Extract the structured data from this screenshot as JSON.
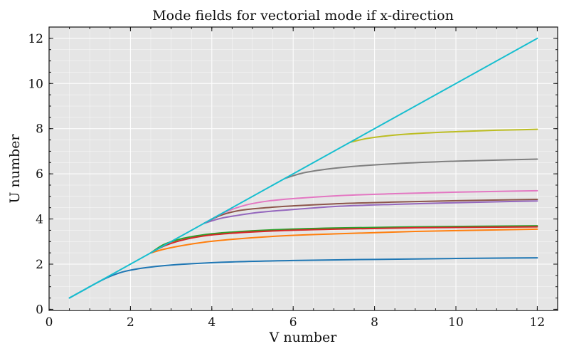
{
  "chart_data": {
    "type": "line",
    "title": "Mode fields for vectorial mode if x-direction",
    "xlabel": "V number",
    "ylabel": "U number",
    "xlim": [
      0,
      12.5
    ],
    "ylim": [
      -0.05,
      12.5
    ],
    "xticks": [
      0,
      2,
      4,
      6,
      8,
      10,
      12
    ],
    "yticks": [
      0,
      2,
      4,
      6,
      8,
      10,
      12
    ],
    "xminor_step": 0.5,
    "yminor_step": 0.5,
    "grid": true,
    "background": "#e5e5e5",
    "series": [
      {
        "color": "#1f77b4",
        "x": [
          0.5,
          0.8,
          1.1,
          1.4,
          1.8,
          2.2,
          2.8,
          3.5,
          4.5,
          6,
          8,
          10,
          12
        ],
        "y": [
          0.5,
          0.8,
          1.1,
          1.38,
          1.65,
          1.8,
          1.93,
          2.02,
          2.1,
          2.16,
          2.21,
          2.25,
          2.28
        ]
      },
      {
        "color": "#ff7f0e",
        "x": [
          2.5,
          2.8,
          3.2,
          3.8,
          4.5,
          5.5,
          7,
          9,
          12
        ],
        "y": [
          2.5,
          2.65,
          2.8,
          2.97,
          3.1,
          3.23,
          3.34,
          3.45,
          3.55
        ]
      },
      {
        "color": "#2ca02c",
        "x": [
          2.5,
          2.8,
          3.2,
          3.8,
          4.5,
          5.5,
          7,
          9,
          12
        ],
        "y": [
          2.5,
          2.85,
          3.1,
          3.3,
          3.42,
          3.52,
          3.6,
          3.65,
          3.7
        ]
      },
      {
        "color": "#d62728",
        "x": [
          2.5,
          2.8,
          3.2,
          3.8,
          4.5,
          5.5,
          7,
          9,
          12
        ],
        "y": [
          2.5,
          2.78,
          3.03,
          3.25,
          3.37,
          3.47,
          3.55,
          3.61,
          3.65
        ]
      },
      {
        "color": "#9467bd",
        "x": [
          3.8,
          4.2,
          4.6,
          5.2,
          6,
          7,
          8.5,
          10,
          12
        ],
        "y": [
          3.8,
          4.02,
          4.15,
          4.3,
          4.42,
          4.55,
          4.65,
          4.72,
          4.8
        ]
      },
      {
        "color": "#8c564b",
        "x": [
          3.8,
          4.2,
          4.6,
          5.2,
          6,
          7,
          8.5,
          10,
          12
        ],
        "y": [
          3.8,
          4.15,
          4.35,
          4.48,
          4.58,
          4.67,
          4.75,
          4.81,
          4.87
        ]
      },
      {
        "color": "#e377c2",
        "x": [
          3.8,
          4.3,
          4.8,
          5.4,
          6.2,
          7.2,
          8.5,
          10,
          12
        ],
        "y": [
          3.8,
          4.28,
          4.6,
          4.8,
          4.93,
          5.04,
          5.12,
          5.19,
          5.25
        ]
      },
      {
        "color": "#7f7f7f",
        "x": [
          5.8,
          6.2,
          6.8,
          7.5,
          8.5,
          10,
          12
        ],
        "y": [
          5.8,
          6.02,
          6.2,
          6.33,
          6.45,
          6.56,
          6.65
        ]
      },
      {
        "color": "#bcbd22",
        "x": [
          7.4,
          7.8,
          8.4,
          9.2,
          10.2,
          11,
          12
        ],
        "y": [
          7.4,
          7.56,
          7.7,
          7.8,
          7.88,
          7.93,
          7.97
        ]
      },
      {
        "color": "#17becf",
        "x": [
          0.5,
          12
        ],
        "y": [
          0.5,
          12
        ]
      }
    ]
  }
}
